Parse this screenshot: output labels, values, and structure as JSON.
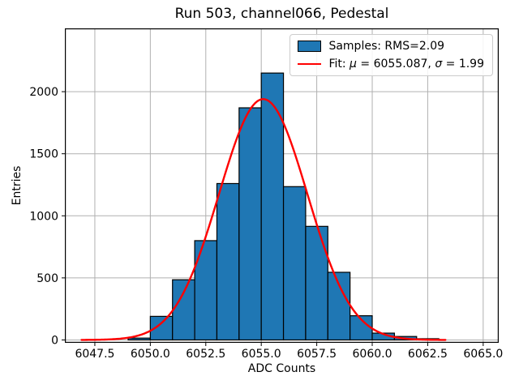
{
  "figure": {
    "background": "#ffffff"
  },
  "chart_data": {
    "type": "bar",
    "subtype": "histogram-with-gaussian-fit",
    "title": "Run 503, channel066, Pedestal",
    "xlabel": "ADC Counts",
    "ylabel": "Entries",
    "xlim": [
      6046.15,
      6065.7
    ],
    "ylim": [
      -23,
      2510
    ],
    "grid": true,
    "x_ticks": [
      6047.5,
      6050.0,
      6052.5,
      6055.0,
      6057.5,
      6060.0,
      6062.5,
      6065.0
    ],
    "x_tick_labels": [
      "6047.5",
      "6050.0",
      "6052.5",
      "6055.0",
      "6057.5",
      "6060.0",
      "6062.5",
      "6065.0"
    ],
    "y_ticks": [
      0,
      500,
      1000,
      1500,
      2000
    ],
    "y_tick_labels": [
      "0",
      "500",
      "1000",
      "1500",
      "2000"
    ],
    "bins": {
      "start": 6049,
      "width": 1,
      "bin_left_edges": [
        6049,
        6050,
        6051,
        6052,
        6053,
        6054,
        6055,
        6056,
        6057,
        6058,
        6059,
        6060,
        6061,
        6062
      ],
      "counts": [
        15,
        190,
        485,
        800,
        1260,
        1870,
        2150,
        1235,
        915,
        545,
        195,
        55,
        28,
        10
      ]
    },
    "fit": {
      "mu": 6055.087,
      "sigma": 1.99,
      "amplitude": 1940,
      "x_start": 6046.9,
      "x_end": 6063.3
    },
    "legend": {
      "position": "upper right",
      "entries": [
        {
          "type": "patch",
          "label": "Samples: RMS=2.09"
        },
        {
          "type": "line",
          "label_parts": {
            "prefix": "Fit: ",
            "mu_symbol": "μ",
            "mid": " = 6055.087, ",
            "sigma_symbol": "σ",
            "suffix": " = 1.99"
          }
        }
      ]
    },
    "colors": {
      "bar_fill": "#1f77b4",
      "bar_edge": "#000000",
      "fit_line": "#ff0000",
      "grid": "#b0b0b0",
      "frame": "#000000",
      "text": "#000000"
    }
  }
}
